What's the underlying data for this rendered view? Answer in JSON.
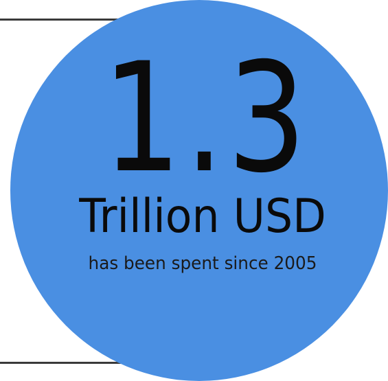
{
  "stat": {
    "value": "1.3",
    "unit": "Trillion USD",
    "caption": "has been spent since 2005"
  },
  "colors": {
    "circle": "#4a8fe2",
    "text": "#0a0a0a",
    "rules": "#3a3a3a",
    "background": "#ffffff"
  }
}
